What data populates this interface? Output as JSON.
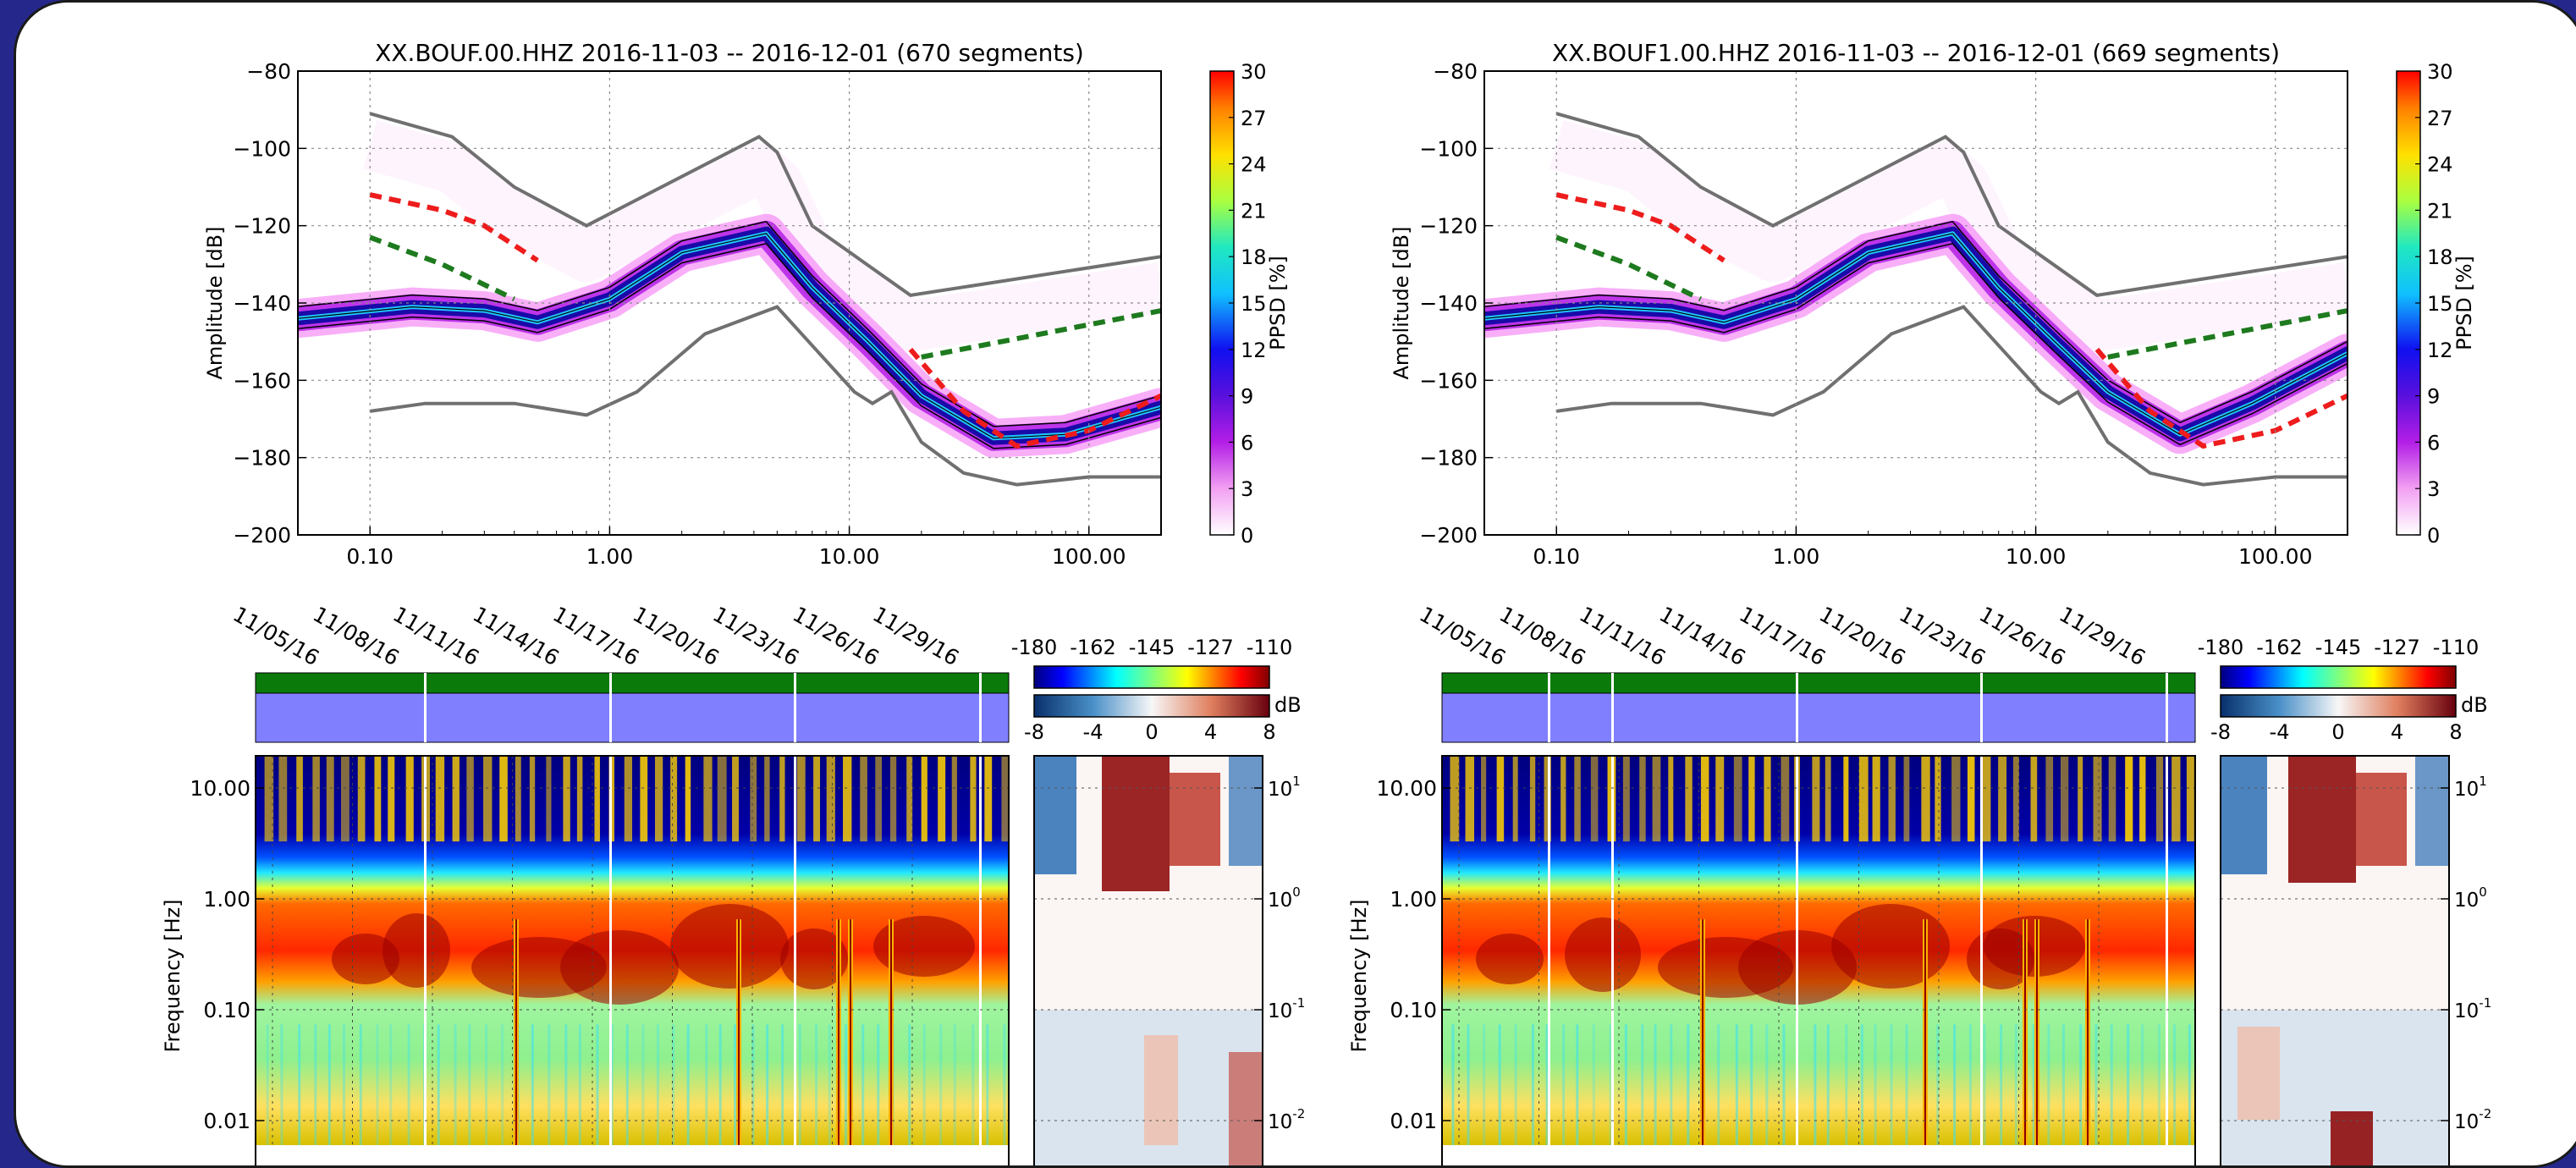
{
  "chart_data": [
    {
      "type": "heatmap",
      "panel": "left",
      "title": "XX.BOUF.00.HHZ   2016-11-03 -- 2016-12-01  (670 segments)",
      "xlabel": "",
      "ylabel": "Amplitude [dB]",
      "x_scale": "log",
      "xlim": [
        0.05,
        200
      ],
      "ylim": [
        -200,
        -80
      ],
      "x_tick_labels": [
        "0.10",
        "1.00",
        "10.00",
        "100.00"
      ],
      "y_tick_labels": [
        "−80",
        "−100",
        "−120",
        "−140",
        "−160",
        "−180",
        "−200"
      ],
      "colorbar_label": "PPSD [%]",
      "colorbar_ticks": [
        "30",
        "27",
        "24",
        "21",
        "18",
        "15",
        "12",
        "9",
        "6",
        "3",
        "0"
      ],
      "grid": true,
      "series": [
        {
          "name": "",
          "role": "NHNM",
          "x": [
            0.1,
            0.22,
            0.4,
            0.8,
            4.2,
            5.0,
            7.0,
            18,
            200
          ],
          "y": [
            -91,
            -97,
            -110,
            -120,
            -97,
            -101,
            -120,
            -138,
            -128
          ]
        },
        {
          "name": "",
          "role": "NLNM",
          "x": [
            0.1,
            0.17,
            0.4,
            0.8,
            1.3,
            2.5,
            5.0,
            7.0,
            10.5,
            12.5,
            15,
            20,
            30,
            50,
            100,
            200
          ],
          "y": [
            -168,
            -166,
            -166,
            -169,
            -163,
            -148,
            -141,
            -151,
            -163,
            -166,
            -163,
            -176,
            -184,
            -187,
            -185,
            -185
          ]
        },
        {
          "name": "",
          "role": "mode",
          "x": [
            0.05,
            0.15,
            0.3,
            0.5,
            1.0,
            2.0,
            4.5,
            7.0,
            12,
            20,
            40,
            80,
            200
          ],
          "y": [
            -144,
            -141,
            -142,
            -145,
            -139,
            -127,
            -122,
            -136,
            -150,
            -164,
            -175,
            -174,
            -167
          ]
        },
        {
          "name": "",
          "role": "high-noise reference (red dashed)",
          "x": [
            0.1,
            0.2,
            0.3,
            0.5
          ],
          "y": [
            -112,
            -116,
            -120,
            -129
          ]
        },
        {
          "name": "",
          "role": "low-noise reference (green dashed)",
          "x": [
            0.1,
            0.2,
            0.4
          ],
          "y": [
            -123,
            -130,
            -139
          ]
        },
        {
          "name": "",
          "role": "high-noise reference (red dashed)",
          "x": [
            18,
            30,
            50,
            100,
            200
          ],
          "y": [
            -152,
            -168,
            -177,
            -173,
            -164
          ]
        },
        {
          "name": "",
          "role": "low-noise reference (green dashed)",
          "x": [
            20,
            200
          ],
          "y": [
            -154,
            -142
          ]
        }
      ]
    },
    {
      "type": "heatmap",
      "panel": "right",
      "title": "XX.BOUF1.00.HHZ   2016-11-03 -- 2016-12-01  (669 segments)",
      "xlabel": "",
      "ylabel": "Amplitude [dB]",
      "x_scale": "log",
      "xlim": [
        0.05,
        200
      ],
      "ylim": [
        -200,
        -80
      ],
      "x_tick_labels": [
        "0.10",
        "1.00",
        "10.00",
        "100.00"
      ],
      "y_tick_labels": [
        "−80",
        "−100",
        "−120",
        "−140",
        "−160",
        "−180",
        "−200"
      ],
      "colorbar_label": "PPSD [%]",
      "colorbar_ticks": [
        "30",
        "27",
        "24",
        "21",
        "18",
        "15",
        "12",
        "9",
        "6",
        "3",
        "0"
      ],
      "grid": true,
      "series": [
        {
          "name": "",
          "role": "NHNM",
          "x": [
            0.1,
            0.22,
            0.4,
            0.8,
            4.2,
            5.0,
            7.0,
            18,
            200
          ],
          "y": [
            -91,
            -97,
            -110,
            -120,
            -97,
            -101,
            -120,
            -138,
            -128
          ]
        },
        {
          "name": "",
          "role": "NLNM",
          "x": [
            0.1,
            0.17,
            0.4,
            0.8,
            1.3,
            2.5,
            5.0,
            7.0,
            10.5,
            12.5,
            15,
            20,
            30,
            50,
            100,
            200
          ],
          "y": [
            -168,
            -166,
            -166,
            -169,
            -163,
            -148,
            -141,
            -151,
            -163,
            -166,
            -163,
            -176,
            -184,
            -187,
            -185,
            -185
          ]
        },
        {
          "name": "",
          "role": "mode",
          "x": [
            0.05,
            0.15,
            0.3,
            0.5,
            1.0,
            2.0,
            4.5,
            7.0,
            12,
            20,
            40,
            80,
            200
          ],
          "y": [
            -144,
            -141,
            -142,
            -145,
            -139,
            -127,
            -122,
            -136,
            -150,
            -163,
            -174,
            -166,
            -153
          ]
        },
        {
          "name": "",
          "role": "high-noise reference (red dashed)",
          "x": [
            0.1,
            0.2,
            0.3,
            0.5
          ],
          "y": [
            -112,
            -116,
            -120,
            -129
          ]
        },
        {
          "name": "",
          "role": "low-noise reference (green dashed)",
          "x": [
            0.1,
            0.2,
            0.4
          ],
          "y": [
            -123,
            -130,
            -139
          ]
        },
        {
          "name": "",
          "role": "high-noise reference (red dashed)",
          "x": [
            18,
            30,
            50,
            100,
            200
          ],
          "y": [
            -152,
            -168,
            -177,
            -173,
            -164
          ]
        },
        {
          "name": "",
          "role": "low-noise reference (green dashed)",
          "x": [
            20,
            200
          ],
          "y": [
            -154,
            -142
          ]
        }
      ]
    },
    {
      "type": "heatmap",
      "panel": "left-spectrogram",
      "xlabel": "",
      "ylabel": "Frequency [Hz]",
      "y_scale": "log",
      "x_tick_labels": [
        "11/05/16",
        "11/08/16",
        "11/11/16",
        "11/14/16",
        "11/17/16",
        "11/20/16",
        "11/23/16",
        "11/26/16",
        "11/29/16"
      ],
      "y_tick_labels": [
        "10.00",
        "1.00",
        "0.10",
        "0.01"
      ],
      "colorbar_ticks": [
        "-180",
        "-162",
        "-145",
        "-127",
        "-110"
      ],
      "diff_colorbar_ticks": [
        "-8",
        "-4",
        "0",
        "4",
        "8"
      ],
      "diff_colorbar_label": "dB",
      "diff_y_tick_labels": [
        "10",
        "10",
        "10",
        "10"
      ],
      "diff_y_tick_exponents": [
        "1",
        "0",
        "-1",
        "-2"
      ]
    },
    {
      "type": "heatmap",
      "panel": "right-spectrogram",
      "xlabel": "",
      "ylabel": "Frequency [Hz]",
      "y_scale": "log",
      "x_tick_labels": [
        "11/05/16",
        "11/08/16",
        "11/11/16",
        "11/14/16",
        "11/17/16",
        "11/20/16",
        "11/23/16",
        "11/26/16",
        "11/29/16"
      ],
      "y_tick_labels": [
        "10.00",
        "1.00",
        "0.10",
        "0.01"
      ],
      "colorbar_ticks": [
        "-180",
        "-162",
        "-145",
        "-127",
        "-110"
      ],
      "diff_colorbar_ticks": [
        "-8",
        "-4",
        "0",
        "4",
        "8"
      ],
      "diff_colorbar_label": "dB",
      "diff_y_tick_labels": [
        "10",
        "10",
        "10",
        "10"
      ],
      "diff_y_tick_exponents": [
        "1",
        "0",
        "-1",
        "-2"
      ]
    }
  ],
  "colors": {
    "background_frame": "#25288a",
    "model_curve": "#707070",
    "red_dashed": "#ee1c1c",
    "green_dashed": "#1e7a1e",
    "availability_green": "#0a7a0a",
    "availability_blue": "#8080ff",
    "gap_line": "#ffffff",
    "pdf_core": "#1a0aa8",
    "pdf_mid": "#b31ee6",
    "pdf_halo": "#f26ef2"
  }
}
